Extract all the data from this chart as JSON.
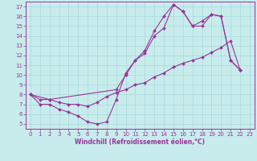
{
  "xlabel": "Windchill (Refroidissement éolien,°C)",
  "bg_color": "#c8ecec",
  "line_color": "#993399",
  "grid_color": "#a8d8d8",
  "line1_x": [
    0,
    1,
    2,
    3,
    4,
    5,
    6,
    7,
    8,
    9,
    10,
    11,
    12,
    13,
    14,
    15,
    16,
    17,
    18,
    19,
    20,
    21,
    22
  ],
  "line1_y": [
    8.0,
    7.0,
    7.0,
    6.5,
    6.2,
    5.8,
    5.2,
    5.0,
    5.2,
    7.5,
    10.2,
    11.5,
    12.2,
    14.0,
    14.8,
    17.2,
    16.5,
    15.0,
    15.0,
    16.2,
    16.0,
    11.5,
    10.5
  ],
  "line2_x": [
    0,
    1,
    2,
    3,
    4,
    5,
    6,
    7,
    8,
    9,
    10,
    11,
    12,
    13,
    14,
    15,
    16,
    17,
    18,
    19,
    20,
    21,
    22
  ],
  "line2_y": [
    8.0,
    7.5,
    7.5,
    7.2,
    7.0,
    7.0,
    6.8,
    7.2,
    7.8,
    8.2,
    8.5,
    9.0,
    9.2,
    9.8,
    10.2,
    10.8,
    11.2,
    11.5,
    11.8,
    12.3,
    12.8,
    13.5,
    10.5
  ],
  "line3_x": [
    0,
    2,
    9,
    10,
    11,
    12,
    13,
    14,
    15,
    16,
    17,
    18,
    19,
    20,
    21,
    22
  ],
  "line3_y": [
    8.0,
    7.5,
    8.5,
    10.0,
    11.5,
    12.5,
    14.5,
    16.0,
    17.2,
    16.5,
    15.0,
    15.5,
    16.2,
    16.0,
    11.5,
    10.5
  ],
  "xlim": [
    -0.5,
    23.5
  ],
  "ylim": [
    4.5,
    17.5
  ],
  "yticks": [
    5,
    6,
    7,
    8,
    9,
    10,
    11,
    12,
    13,
    14,
    15,
    16,
    17
  ],
  "xticks": [
    0,
    1,
    2,
    3,
    4,
    5,
    6,
    7,
    8,
    9,
    10,
    11,
    12,
    13,
    14,
    15,
    16,
    17,
    18,
    19,
    20,
    21,
    22,
    23
  ],
  "tick_fontsize": 5.0,
  "xlabel_fontsize": 5.5,
  "marker_size": 2.0,
  "line_width": 0.8
}
